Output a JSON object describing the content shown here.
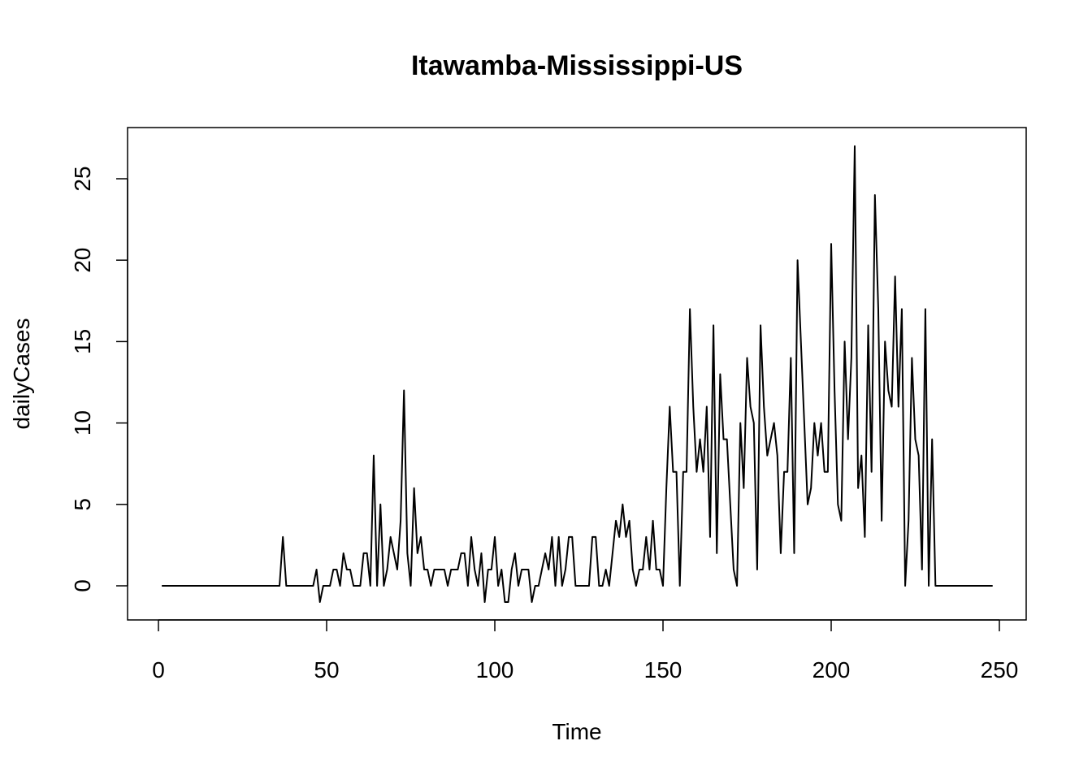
{
  "chart_data": {
    "type": "line",
    "title": "Itawamba-Mississippi-US",
    "xlabel": "Time",
    "ylabel": "dailyCases",
    "xlim": [
      1,
      248
    ],
    "ylim": [
      -1,
      27
    ],
    "x_ticks": [
      0,
      50,
      100,
      150,
      200,
      250
    ],
    "y_ticks": [
      0,
      5,
      10,
      15,
      20,
      25
    ],
    "grid": false,
    "legend": "none",
    "line_color": "#000000",
    "series": [
      {
        "x_start": 1,
        "values": [
          0,
          0,
          0,
          0,
          0,
          0,
          0,
          0,
          0,
          0,
          0,
          0,
          0,
          0,
          0,
          0,
          0,
          0,
          0,
          0,
          0,
          0,
          0,
          0,
          0,
          0,
          0,
          0,
          0,
          0,
          0,
          0,
          0,
          0,
          0,
          0,
          3,
          0,
          0,
          0,
          0,
          0,
          0,
          0,
          0,
          0,
          1,
          -1,
          0,
          0,
          0,
          1,
          1,
          0,
          2,
          1,
          1,
          0,
          0,
          0,
          2,
          2,
          0,
          8,
          0,
          5,
          0,
          1,
          3,
          2,
          1,
          4,
          12,
          2,
          0,
          6,
          2,
          3,
          1,
          1,
          0,
          1,
          1,
          1,
          1,
          0,
          1,
          1,
          1,
          2,
          2,
          0,
          3,
          1,
          0,
          2,
          -1,
          1,
          1,
          3,
          0,
          1,
          -1,
          -1,
          1,
          2,
          0,
          1,
          1,
          1,
          -1,
          0,
          0,
          1,
          2,
          1,
          3,
          0,
          3,
          0,
          1,
          3,
          3,
          0,
          0,
          0,
          0,
          0,
          3,
          3,
          0,
          0,
          1,
          0,
          2,
          4,
          3,
          5,
          3,
          4,
          1,
          0,
          1,
          1,
          3,
          1,
          4,
          1,
          1,
          0,
          6,
          11,
          7,
          7,
          0,
          7,
          7,
          17,
          11,
          7,
          9,
          7,
          11,
          3,
          16,
          2,
          13,
          9,
          9,
          5,
          1,
          0,
          10,
          6,
          14,
          11,
          10,
          1,
          16,
          11,
          8,
          9,
          10,
          8,
          2,
          7,
          7,
          14,
          2,
          20,
          15,
          10,
          5,
          6,
          10,
          8,
          10,
          7,
          7,
          21,
          12,
          5,
          4,
          15,
          9,
          14,
          27,
          6,
          8,
          3,
          16,
          7,
          24,
          17,
          4,
          15,
          12,
          11,
          19,
          11,
          17,
          0,
          4,
          14,
          9,
          8,
          1,
          17,
          0,
          9,
          0,
          0,
          0,
          0,
          0,
          0,
          0,
          0,
          0,
          0,
          0,
          0,
          0,
          0,
          0,
          0,
          0,
          0
        ]
      }
    ]
  }
}
